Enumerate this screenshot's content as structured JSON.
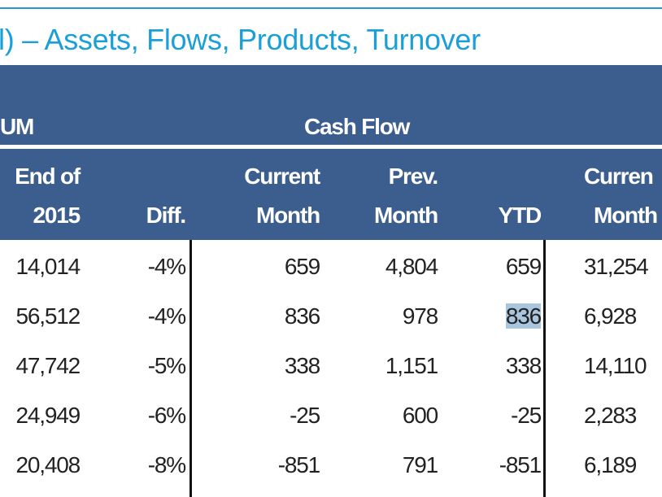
{
  "title": "l) – Assets, Flows, Products, Turnover",
  "group_headers": {
    "aum": "UM",
    "cash_flow": "Cash Flow"
  },
  "columns": {
    "end_of_2015": [
      "End of",
      "2015"
    ],
    "diff": "Diff.",
    "current_month": [
      "Current",
      "Month"
    ],
    "prev_month": [
      "Prev.",
      "Month"
    ],
    "ytd": "YTD",
    "current_month_2": [
      "Curren",
      "Month"
    ]
  },
  "rows": [
    {
      "end_2015": "14,014",
      "diff": "-4%",
      "cur": "659",
      "prev": "4,804",
      "ytd": "659",
      "cur2": "31,254"
    },
    {
      "end_2015": "56,512",
      "diff": "-4%",
      "cur": "836",
      "prev": "978",
      "ytd": "836",
      "cur2": "6,928"
    },
    {
      "end_2015": "47,742",
      "diff": "-5%",
      "cur": "338",
      "prev": "1,151",
      "ytd": "338",
      "cur2": "14,110"
    },
    {
      "end_2015": "24,949",
      "diff": "-6%",
      "cur": "-25",
      "prev": "600",
      "ytd": "-25",
      "cur2": "2,283"
    },
    {
      "end_2015": "20,408",
      "diff": "-8%",
      "cur": "-851",
      "prev": "791",
      "ytd": "-851",
      "cur2": "6,189"
    }
  ],
  "colors": {
    "header_bg": "#3b5e8e",
    "title": "#1a9fd9",
    "highlight": "#a9c6de"
  }
}
